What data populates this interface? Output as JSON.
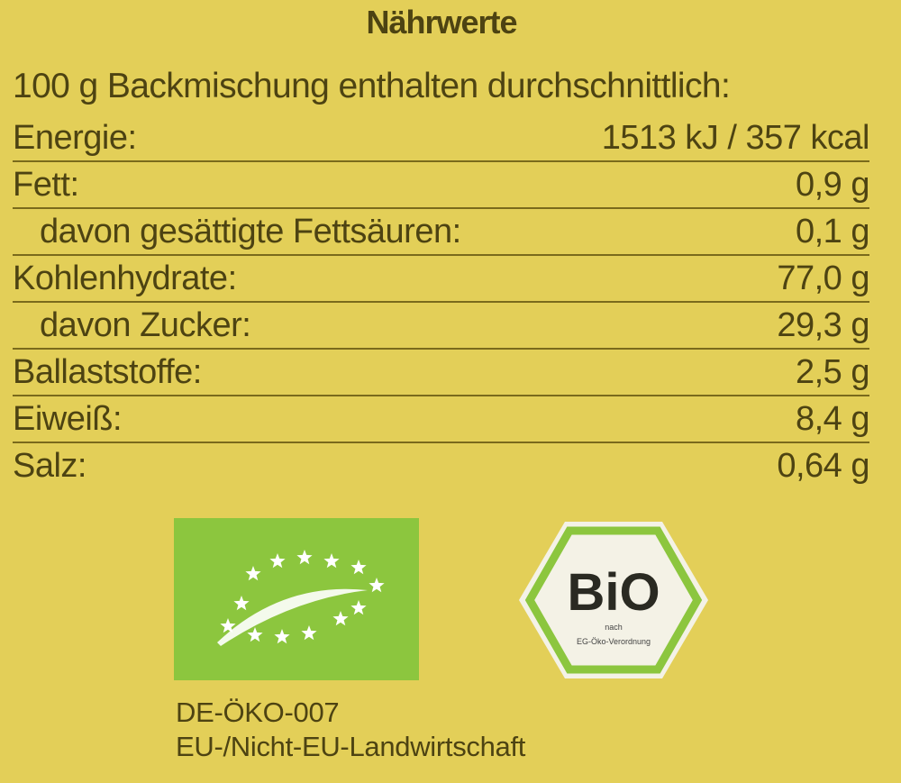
{
  "title": "Nährwerte",
  "intro": "100 g Backmischung enthalten durchschnittlich:",
  "rows": [
    {
      "label": "Energie:",
      "value": "1513 kJ / 357 kcal",
      "sub": false
    },
    {
      "label": "Fett:",
      "value": "0,9 g",
      "sub": false
    },
    {
      "label": "davon gesättigte Fettsäuren:",
      "value": "0,1 g",
      "sub": true
    },
    {
      "label": "Kohlenhydrate:",
      "value": "77,0 g",
      "sub": false
    },
    {
      "label": "davon Zucker:",
      "value": "29,3 g",
      "sub": true
    },
    {
      "label": "Ballaststoffe:",
      "value": "2,5 g",
      "sub": false
    },
    {
      "label": "Eiweiß:",
      "value": "8,4 g",
      "sub": false
    },
    {
      "label": "Salz:",
      "value": "0,64 g",
      "sub": false
    }
  ],
  "logos": {
    "eu_organic": {
      "icon": "eu-organic-leaf-logo",
      "color": "#8cc63e"
    },
    "bio_seal": {
      "icon": "bio-hexagon-seal",
      "text": "BiO",
      "line1": "nach",
      "line2": "EG-Öko-Verordnung",
      "color": "#8cc63e"
    }
  },
  "certification": {
    "code": "DE-ÖKO-007",
    "origin": "EU-/Nicht-EU-Landwirtschaft"
  },
  "colors": {
    "background": "#e3cf58",
    "text": "#4d4312"
  }
}
